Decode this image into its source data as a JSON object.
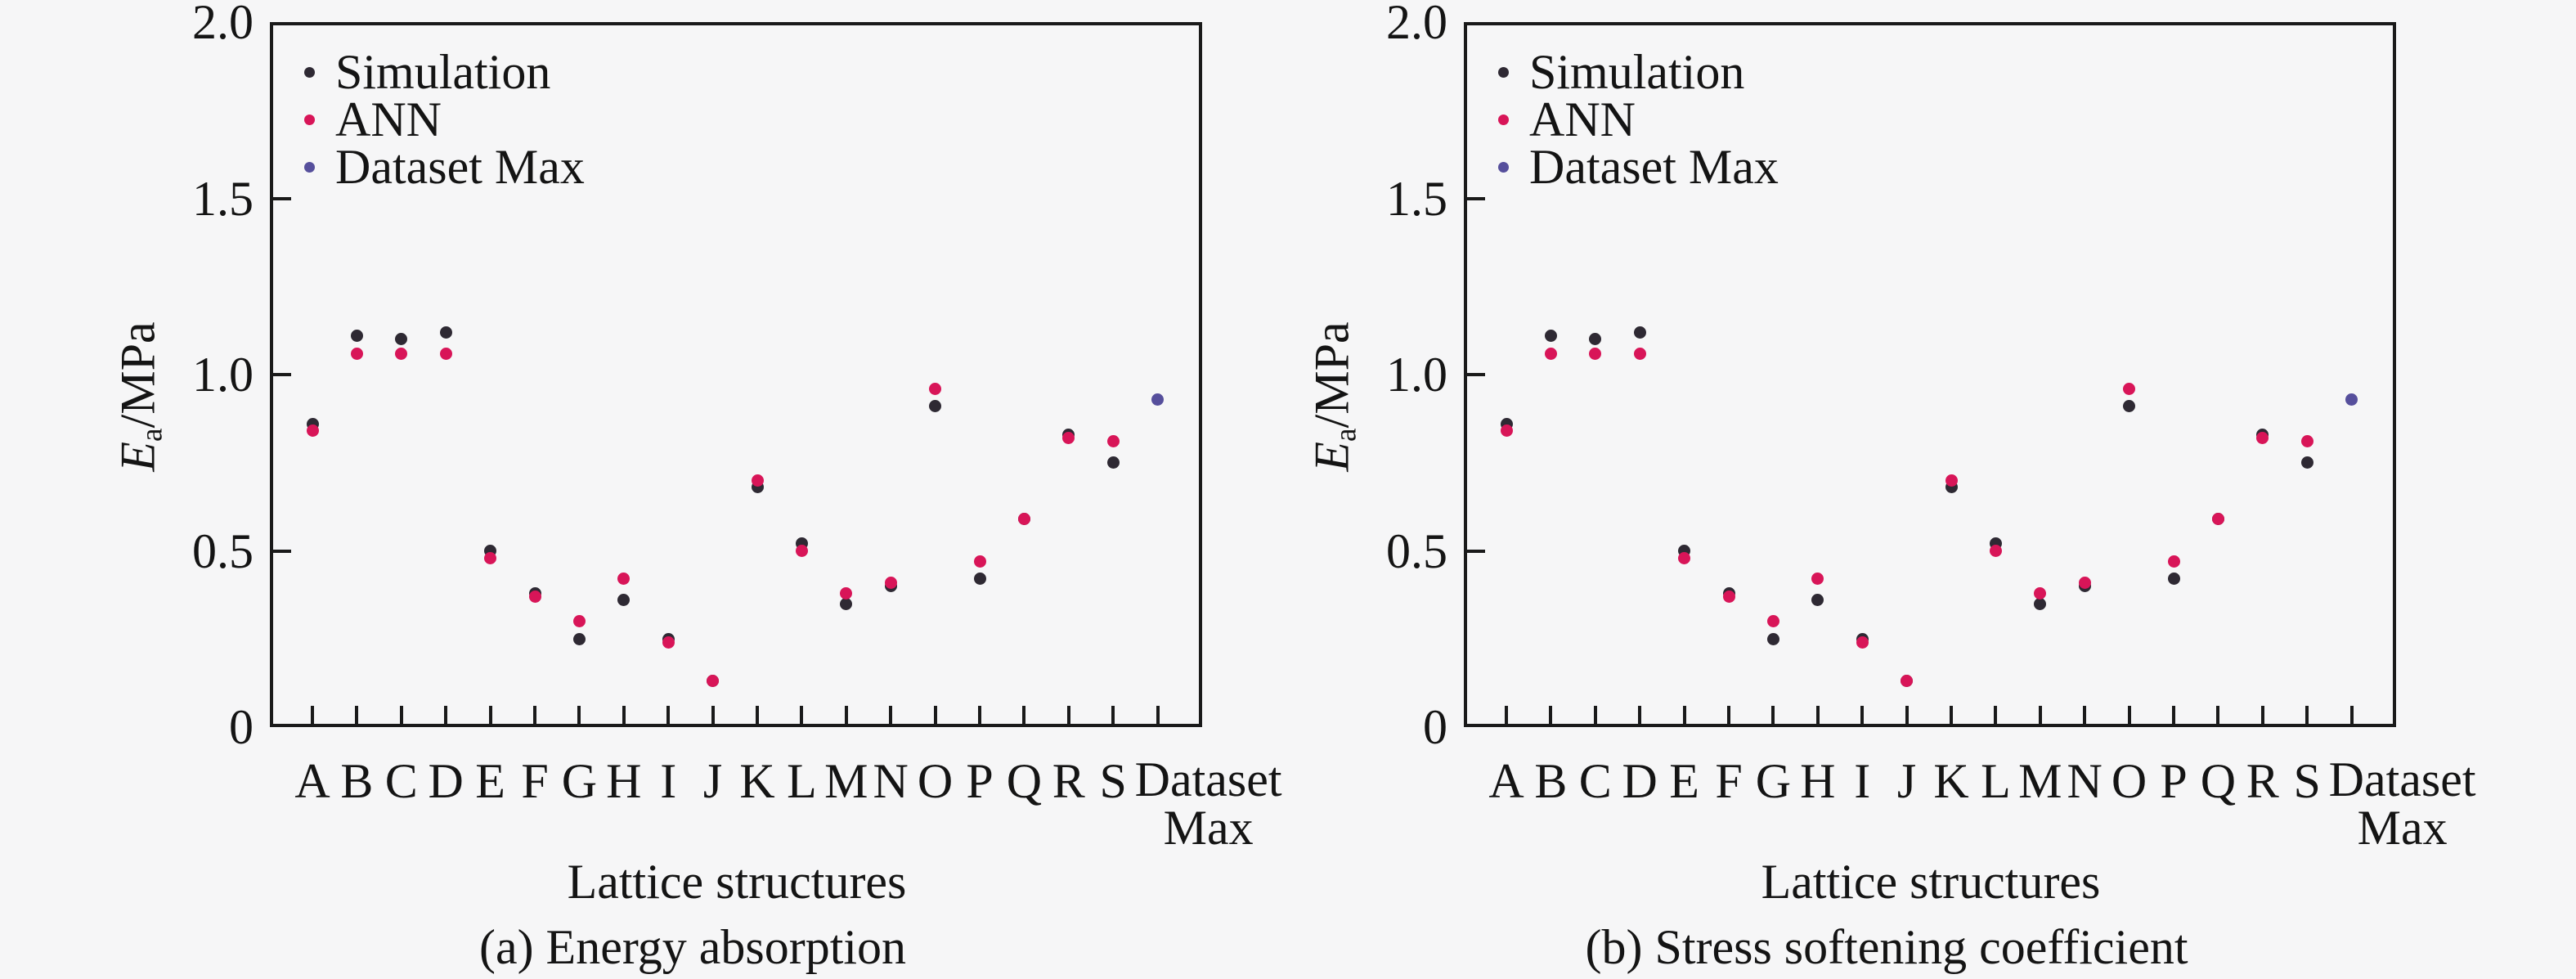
{
  "figure": {
    "background": "#f6f6f7",
    "axis_color": "#1a1a1a",
    "text_color": "#141414"
  },
  "legend": {
    "items": [
      {
        "label": "Simulation",
        "color": "#2e2933"
      },
      {
        "label": "ANN",
        "color": "#d81558"
      },
      {
        "label": "Dataset Max",
        "color": "#564f9c"
      }
    ]
  },
  "ylabel": {
    "symbol": "E",
    "subscript": "a",
    "unit": "/MPa"
  },
  "chart_data": [
    {
      "type": "scatter",
      "panel": "a",
      "caption": "(a) Energy absorption",
      "xlabel": "Lattice structures",
      "ylabel": "Ea/MPa",
      "ylim": [
        0,
        2.0
      ],
      "yticks": [
        0,
        0.5,
        1.0,
        1.5,
        2.0
      ],
      "ytick_labels": [
        "0",
        "0.5",
        "1.0",
        "1.5",
        "2.0"
      ],
      "grid": false,
      "legend_position": "upper-left",
      "categories": [
        "A",
        "B",
        "C",
        "D",
        "E",
        "F",
        "G",
        "H",
        "I",
        "J",
        "K",
        "L",
        "M",
        "N",
        "O",
        "P",
        "Q",
        "R",
        "S",
        "Dataset Max"
      ],
      "last_category_line1": "Dataset",
      "last_category_line2": "Max",
      "series": [
        {
          "name": "Simulation",
          "color": "#2e2933",
          "values": [
            0.86,
            1.11,
            1.1,
            1.12,
            0.5,
            0.38,
            0.25,
            0.36,
            0.25,
            0.13,
            0.68,
            0.52,
            0.35,
            0.4,
            0.91,
            0.42,
            0.59,
            0.83,
            0.75,
            null
          ]
        },
        {
          "name": "ANN",
          "color": "#d81558",
          "values": [
            0.84,
            1.06,
            1.06,
            1.06,
            0.48,
            0.37,
            0.3,
            0.42,
            0.24,
            0.13,
            0.7,
            0.5,
            0.38,
            0.41,
            0.96,
            0.47,
            0.59,
            0.82,
            0.81,
            null
          ]
        },
        {
          "name": "Dataset Max",
          "color": "#564f9c",
          "values": [
            null,
            null,
            null,
            null,
            null,
            null,
            null,
            null,
            null,
            null,
            null,
            null,
            null,
            null,
            null,
            null,
            null,
            null,
            null,
            0.93
          ]
        }
      ]
    },
    {
      "type": "scatter",
      "panel": "b",
      "caption": "(b) Stress softening coefficient",
      "xlabel": "Lattice structures",
      "ylabel": "Ea/MPa",
      "ylim": [
        0,
        2.0
      ],
      "yticks": [
        0,
        0.5,
        1.0,
        1.5,
        2.0
      ],
      "ytick_labels": [
        "0",
        "0.5",
        "1.0",
        "1.5",
        "2.0"
      ],
      "grid": false,
      "legend_position": "upper-left",
      "categories": [
        "A",
        "B",
        "C",
        "D",
        "E",
        "F",
        "G",
        "H",
        "I",
        "J",
        "K",
        "L",
        "M",
        "N",
        "O",
        "P",
        "Q",
        "R",
        "S",
        "Dataset Max"
      ],
      "last_category_line1": "Dataset",
      "last_category_line2": "Max",
      "series": [
        {
          "name": "Simulation",
          "color": "#2e2933",
          "values": [
            0.86,
            1.11,
            1.1,
            1.12,
            0.5,
            0.38,
            0.25,
            0.36,
            0.25,
            0.13,
            0.68,
            0.52,
            0.35,
            0.4,
            0.91,
            0.42,
            0.59,
            0.83,
            0.75,
            null
          ]
        },
        {
          "name": "ANN",
          "color": "#d81558",
          "values": [
            0.84,
            1.06,
            1.06,
            1.06,
            0.48,
            0.37,
            0.3,
            0.42,
            0.24,
            0.13,
            0.7,
            0.5,
            0.38,
            0.41,
            0.96,
            0.47,
            0.59,
            0.82,
            0.81,
            null
          ]
        },
        {
          "name": "Dataset Max",
          "color": "#564f9c",
          "values": [
            null,
            null,
            null,
            null,
            null,
            null,
            null,
            null,
            null,
            null,
            null,
            null,
            null,
            null,
            null,
            null,
            null,
            null,
            null,
            0.93
          ]
        }
      ]
    }
  ]
}
